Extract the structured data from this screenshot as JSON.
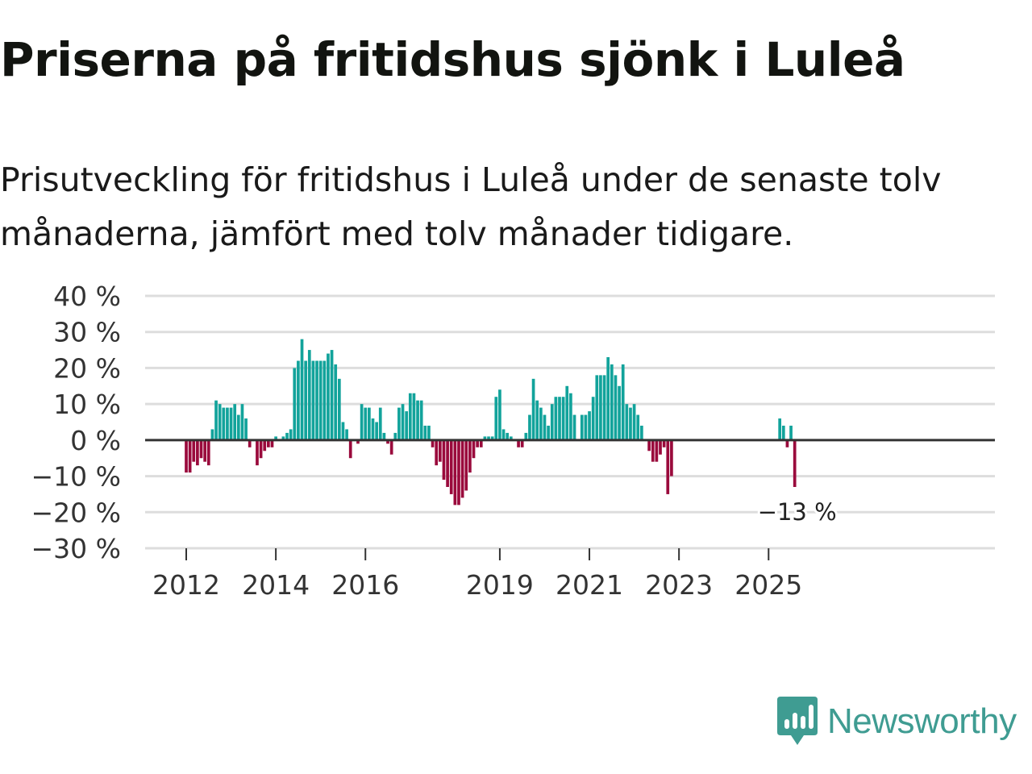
{
  "header": {
    "title": "Priserna på fritidshus sjönk i Luleå",
    "subtitle": "Prisutveckling för fritidshus i Luleå under de senaste tolv månaderna, jämfört med tolv månader tidigare."
  },
  "brand": {
    "name": "Newsworthy",
    "icon": "newsworthy-logo-icon",
    "color": "#3f9c92"
  },
  "colors": {
    "positive": "#12a39b",
    "negative": "#9a0a3c",
    "zero_line": "#333333",
    "grid": "#dddddd"
  },
  "chart_data": {
    "type": "bar",
    "title": "Priserna på fritidshus sjönk i Luleå",
    "subtitle": "Prisutveckling för fritidshus i Luleå under de senaste tolv månaderna, jämfört med tolv månader tidigare.",
    "xlabel": "",
    "ylabel": "",
    "x_unit": "monthly, Jan 2012 – Dec 2025",
    "ylim": [
      -30,
      40
    ],
    "yticks": [
      40,
      30,
      20,
      10,
      0,
      -10,
      -20,
      -30
    ],
    "ytick_labels": [
      "40 %",
      "30 %",
      "20 %",
      "10 %",
      "0 %",
      "−10 %",
      "−20 %",
      "−30 %"
    ],
    "xticks": [
      {
        "label": "2012",
        "index": 0
      },
      {
        "label": "2014",
        "index": 24
      },
      {
        "label": "2016",
        "index": 48
      },
      {
        "label": "2019",
        "index": 84
      },
      {
        "label": "2021",
        "index": 108
      },
      {
        "label": "2023",
        "index": 132
      },
      {
        "label": "2025",
        "index": 156
      }
    ],
    "series": [
      {
        "name": "Prisutveckling (%)",
        "values": [
          -9,
          -9,
          -6,
          -7,
          -5,
          -6,
          -7,
          3,
          11,
          10,
          9,
          9,
          9,
          10,
          7,
          10,
          6,
          -2,
          0,
          -7,
          -5,
          -3,
          -2,
          -2,
          1,
          0,
          1,
          2,
          3,
          20,
          22,
          28,
          22,
          25,
          22,
          22,
          22,
          22,
          24,
          25,
          21,
          17,
          5,
          3,
          -5,
          0,
          -1,
          10,
          9,
          9,
          6,
          5,
          9,
          2,
          -1,
          -4,
          2,
          9,
          10,
          8,
          13,
          13,
          11,
          11,
          4,
          4,
          -2,
          -7,
          -6,
          -11,
          -13,
          -15,
          -18,
          -18,
          -16,
          -14,
          -9,
          -5,
          -2,
          -2,
          1,
          1,
          1,
          12,
          14,
          3,
          2,
          1,
          0,
          -2,
          -2,
          2,
          7,
          17,
          11,
          9,
          7,
          4,
          10,
          12,
          12,
          12,
          15,
          13,
          7,
          0,
          7,
          7,
          8,
          12,
          18,
          18,
          18,
          23,
          21,
          18,
          15,
          21,
          10,
          9,
          10,
          7,
          4,
          0,
          -3,
          -6,
          -6,
          -4,
          -2,
          -15,
          -10,
          0,
          0,
          0,
          0,
          0,
          0,
          0,
          0,
          0,
          0,
          0,
          0,
          0,
          0,
          0,
          0,
          0,
          0,
          0,
          0,
          0,
          0,
          0,
          0,
          0,
          0,
          0,
          0,
          6,
          4,
          -2,
          4,
          -13,
          0,
          0,
          0,
          0
        ]
      }
    ],
    "annotations": [
      {
        "label": "−13 %",
        "index": 163,
        "value": -13
      }
    ]
  }
}
